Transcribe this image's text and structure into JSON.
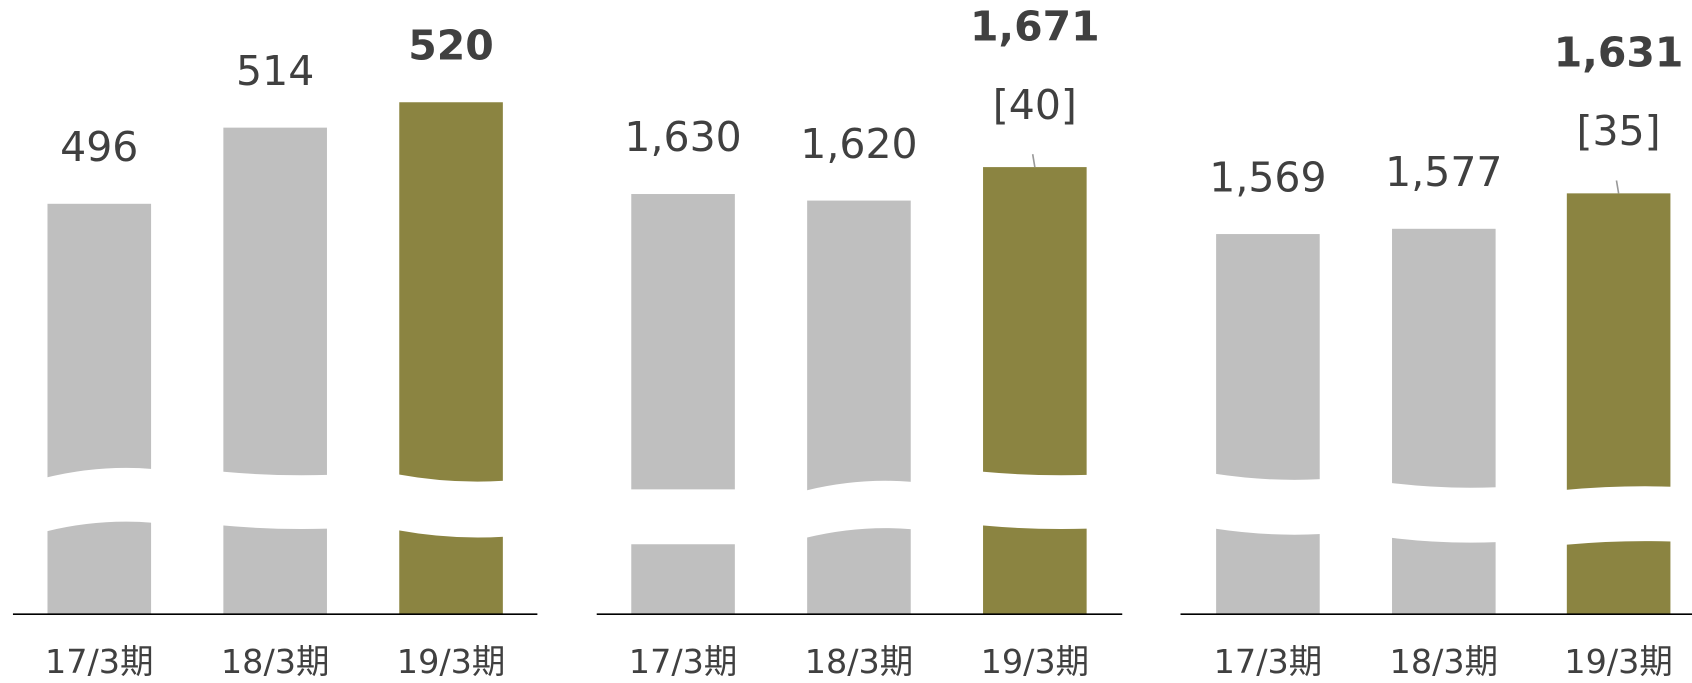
{
  "chart_data": [
    {
      "type": "bar",
      "categories": [
        "17/3期",
        "18/3期",
        "19/3期"
      ],
      "values": [
        496,
        514,
        520
      ],
      "value_labels": [
        "496",
        "514",
        "520"
      ],
      "colors": [
        "#bfbfbf",
        "#bfbfbf",
        "#8b8441"
      ],
      "ylim": [
        399,
        534
      ]
    },
    {
      "type": "bar",
      "categories": [
        "17/3期",
        "18/3期",
        "19/3期"
      ],
      "values": [
        1630,
        1620,
        1671
      ],
      "value_labels": [
        "1,630",
        "1,620",
        "1,671"
      ],
      "colors": [
        "#bfbfbf",
        "#bfbfbf",
        "#8b8441"
      ],
      "ylim": [
        990,
        1860
      ],
      "annotation": "[40]"
    },
    {
      "type": "bar",
      "categories": [
        "17/3期",
        "18/3期",
        "19/3期"
      ],
      "values": [
        1569,
        1577,
        1631
      ],
      "value_labels": [
        "1,569",
        "1,577",
        "1,631"
      ],
      "colors": [
        "#bfbfbf",
        "#bfbfbf",
        "#8b8441"
      ],
      "ylim": [
        990,
        1860
      ],
      "annotation": "[35]"
    }
  ]
}
